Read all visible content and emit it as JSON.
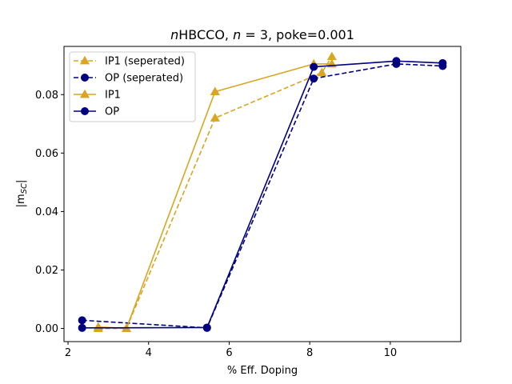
{
  "chart_data": {
    "type": "line",
    "title_prefix": "n",
    "title_rest": "HBCCO, ",
    "title_n": "n",
    "title_tail": " = 3, poke=0.001",
    "xlabel": "% Eff. Doping",
    "ylabel_main": "|m",
    "ylabel_sub": "SC",
    "ylabel_close": "|",
    "xlim": [
      1.9,
      11.75
    ],
    "ylim": [
      -0.0045,
      0.0965
    ],
    "xticks": [
      2,
      4,
      6,
      8,
      10
    ],
    "xtick_labels": [
      "2",
      "4",
      "6",
      "8",
      "10"
    ],
    "yticks": [
      0.0,
      0.02,
      0.04,
      0.06,
      0.08
    ],
    "ytick_labels": [
      "0.00",
      "0.02",
      "0.04",
      "0.06",
      "0.08"
    ],
    "legend_position": "upper-left",
    "series": [
      {
        "name": "IP1 (seperated)",
        "color": "#DAA520",
        "dash": "dashed",
        "marker": "triangle",
        "x": [
          2.75,
          3.45,
          5.65,
          8.3,
          8.55
        ],
        "y": [
          0.0,
          0.0,
          0.072,
          0.0875,
          0.093
        ]
      },
      {
        "name": "OP (seperated)",
        "color": "#000080",
        "dash": "dashed",
        "marker": "circle",
        "x": [
          2.35,
          5.45,
          8.1,
          10.15,
          11.3
        ],
        "y": [
          0.0028,
          0.0002,
          0.0855,
          0.0905,
          0.0898
        ]
      },
      {
        "name": "IP1",
        "color": "#DAA520",
        "dash": "solid",
        "marker": "triangle",
        "x": [
          2.75,
          3.45,
          5.65,
          8.1,
          8.55
        ],
        "y": [
          0.0005,
          0.0,
          0.081,
          0.0905,
          0.0905
        ]
      },
      {
        "name": "OP",
        "color": "#000080",
        "dash": "solid",
        "marker": "circle",
        "x": [
          2.35,
          5.45,
          8.1,
          10.15,
          11.3
        ],
        "y": [
          0.0002,
          0.0003,
          0.0895,
          0.0915,
          0.0908
        ]
      }
    ]
  }
}
